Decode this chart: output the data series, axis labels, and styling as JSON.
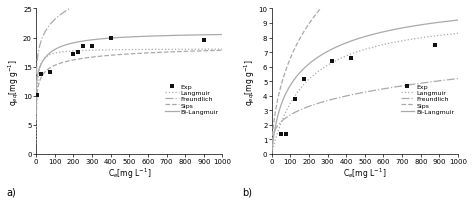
{
  "panel_a": {
    "exp_x": [
      5,
      25,
      75,
      200,
      225,
      250,
      300,
      400,
      900
    ],
    "exp_y": [
      10.2,
      13.8,
      14.0,
      17.2,
      17.5,
      18.5,
      18.5,
      20.0,
      19.5
    ],
    "langmuir_qm": 18.1,
    "langmuir_kl": 0.22,
    "freundlich_kf": 12.5,
    "freundlich_n": 7.5,
    "sips_qm": 20.3,
    "sips_ks": 0.18,
    "sips_ns": 0.38,
    "bilangmuir_q1": 13.5,
    "bilangmuir_k1": 2.0,
    "bilangmuir_q2": 7.5,
    "bilangmuir_k2": 0.015,
    "ylabel": "q$_{eq}$[mg g$^{-1}$]",
    "xlabel": "C$_{e}$[mg L$^{-1}$]",
    "label": "a)",
    "xlim": [
      0,
      1000
    ],
    "ylim": [
      0,
      25
    ],
    "yticks": [
      0,
      5,
      10,
      15,
      20,
      25
    ],
    "xticks": [
      0,
      100,
      200,
      300,
      400,
      500,
      600,
      700,
      800,
      900,
      1000
    ]
  },
  "panel_b": {
    "exp_x": [
      50,
      75,
      125,
      175,
      325,
      425,
      875
    ],
    "exp_y": [
      1.4,
      1.35,
      3.75,
      5.15,
      6.4,
      6.6,
      7.5
    ],
    "langmuir_qm": 9.8,
    "langmuir_kl": 0.0055,
    "freundlich_kf": 0.72,
    "freundlich_n": 3.5,
    "sips_qm": 30.0,
    "sips_ks": 0.0012,
    "sips_ns": 0.6,
    "bilangmuir_q1": 4.5,
    "bilangmuir_k1": 0.025,
    "bilangmuir_q2": 6.5,
    "bilangmuir_k2": 0.003,
    "ylabel": "q$_{eq}$[mg g$^{-1}$]",
    "xlabel": "C$_{e}$[mg L$^{-1}$]",
    "label": "b)",
    "xlim": [
      0,
      1000
    ],
    "ylim": [
      0,
      10
    ],
    "yticks": [
      0,
      1,
      2,
      3,
      4,
      5,
      6,
      7,
      8,
      9,
      10
    ],
    "xticks": [
      0,
      100,
      200,
      300,
      400,
      500,
      600,
      700,
      800,
      900,
      1000
    ]
  },
  "legend_labels": [
    "Exp",
    "Langmuir",
    "Freundlich",
    "Sips",
    "Bi-Langmuir"
  ],
  "line_color": "#aaaaaa",
  "exp_color": "#111111",
  "background_color": "#ffffff"
}
